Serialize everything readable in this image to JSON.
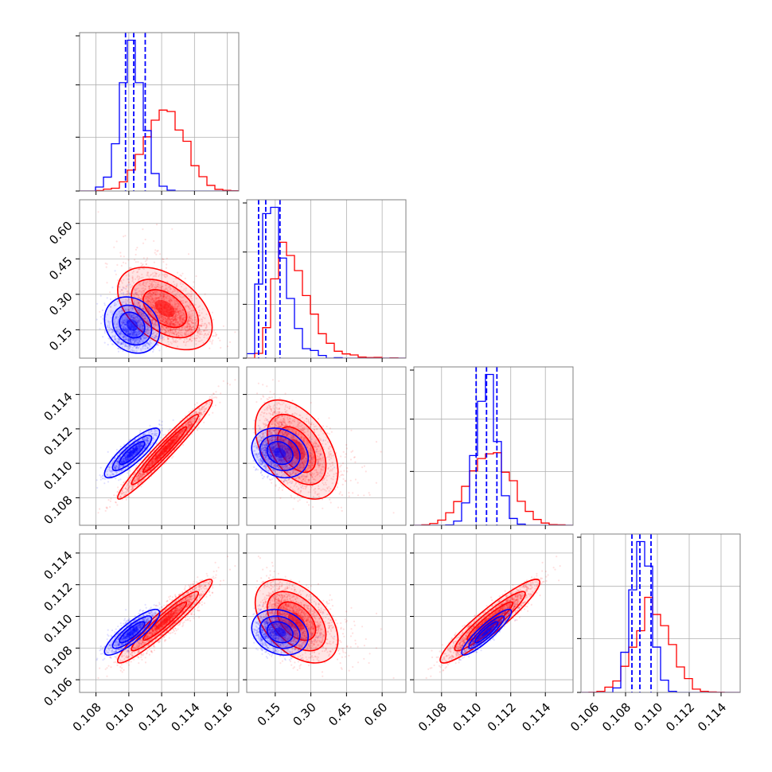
{
  "chart_data": {
    "type": "corner",
    "grid": true,
    "colors": {
      "series_a": "#0000ff",
      "series_b": "#ff0000"
    },
    "params": [
      {
        "range": [
          0.107,
          0.1167
        ],
        "ticks": [
          0.108,
          0.11,
          0.112,
          0.114,
          0.116
        ],
        "tick_labels": [
          "0.108",
          "0.110",
          "0.112",
          "0.114",
          "0.116"
        ]
      },
      {
        "range": [
          0.03,
          0.7
        ],
        "ticks": [
          0.15,
          0.3,
          0.45,
          0.6
        ],
        "tick_labels": [
          "0.15",
          "0.30",
          "0.45",
          "0.60"
        ]
      },
      {
        "range": [
          0.1064,
          0.1156
        ],
        "ticks": [
          0.108,
          0.11,
          0.112,
          0.114
        ],
        "tick_labels": [
          "0.108",
          "0.110",
          "0.112",
          "0.114"
        ]
      },
      {
        "range": [
          0.1052,
          0.1152
        ],
        "ticks": [
          0.106,
          0.108,
          0.11,
          0.112,
          0.114
        ],
        "tick_labels": [
          "0.106",
          "0.108",
          "0.110",
          "0.112",
          "0.114"
        ]
      }
    ],
    "series_a": {
      "mean": [
        0.1102,
        0.15,
        0.1106,
        0.109
      ],
      "sd": [
        0.0007,
        0.035,
        0.0006,
        0.0006
      ],
      "quantiles": [
        [
          0.1098,
          0.1103,
          0.111
        ],
        [
          0.08,
          0.11,
          0.17
        ],
        [
          0.11,
          0.1106,
          0.1112
        ],
        [
          0.1084,
          0.1089,
          0.1096
        ]
      ],
      "corr": [
        [
          1,
          -0.2,
          0.85,
          0.85
        ],
        [
          -0.2,
          1,
          -0.2,
          -0.2
        ],
        [
          0.85,
          -0.2,
          1,
          0.9
        ],
        [
          0.85,
          -0.2,
          0.9,
          1
        ]
      ]
    },
    "series_b": {
      "mean": [
        0.1122,
        0.22,
        0.1108,
        0.1097
      ],
      "sd": [
        0.0012,
        0.08,
        0.0012,
        0.0011
      ],
      "corr": [
        [
          1,
          -0.45,
          0.97,
          0.95
        ],
        [
          -0.45,
          1,
          -0.45,
          -0.45
        ],
        [
          0.97,
          -0.45,
          1,
          0.93
        ],
        [
          0.95,
          -0.45,
          0.93,
          1
        ]
      ]
    }
  }
}
